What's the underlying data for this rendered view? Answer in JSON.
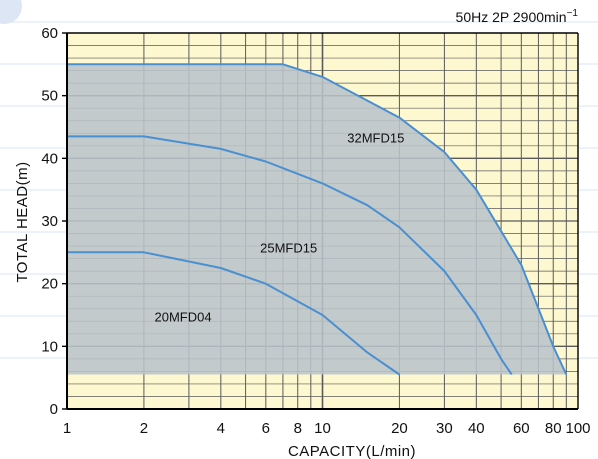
{
  "chart_data": {
    "type": "line",
    "condition": "50Hz 2P 2900min",
    "condition_sup": "−1",
    "xlabel": "CAPACITY(L/min)",
    "ylabel": "TOTAL HEAD(m)",
    "x_scale": "log",
    "xlim": [
      1,
      100
    ],
    "ylim": [
      0,
      60
    ],
    "x_ticks": [
      1,
      2,
      4,
      6,
      8,
      10,
      20,
      30,
      40,
      60,
      80,
      100
    ],
    "x_tick_labels": [
      "1",
      "2",
      "4",
      "6",
      "8",
      "10",
      "20",
      "30",
      "40",
      "60",
      "80",
      "100"
    ],
    "y_ticks": [
      0,
      10,
      20,
      30,
      40,
      50,
      60
    ],
    "y_tick_labels": [
      "0",
      "10",
      "20",
      "30",
      "40",
      "50",
      "60"
    ],
    "grid": true,
    "operating_range": {
      "color": "#b9c3cb",
      "points": [
        [
          1,
          5.5
        ],
        [
          1,
          55
        ],
        [
          7,
          55
        ],
        [
          10,
          53
        ],
        [
          20,
          46.5
        ],
        [
          30,
          41
        ],
        [
          40,
          35
        ],
        [
          60,
          23
        ],
        [
          80,
          10
        ],
        [
          90,
          5.5
        ]
      ]
    },
    "series": [
      {
        "name": "32MFD15",
        "color": "#4a8fd0",
        "x": [
          1,
          7,
          10,
          20,
          30,
          40,
          60,
          80,
          90
        ],
        "y": [
          55,
          55,
          53,
          46.5,
          41,
          35,
          23,
          10,
          5.5
        ],
        "label_at": [
          12.5,
          42.5
        ]
      },
      {
        "name": "25MFD15",
        "color": "#4a8fd0",
        "x": [
          1,
          2,
          4,
          6,
          10,
          15,
          20,
          30,
          40,
          50,
          55
        ],
        "y": [
          43.5,
          43.5,
          41.5,
          39.5,
          36,
          32.5,
          29,
          22,
          15,
          8,
          5.5
        ],
        "label_at": [
          5.7,
          25
        ]
      },
      {
        "name": "20MFD04",
        "color": "#4a8fd0",
        "x": [
          1,
          2,
          4,
          6,
          10,
          15,
          20
        ],
        "y": [
          25,
          25,
          22.5,
          20,
          15,
          9,
          5.5
        ],
        "label_at": [
          2.2,
          14
        ]
      }
    ],
    "colors": {
      "plot_background": "#fdf8d0",
      "grid": "#5a5a5a",
      "axis": "#000000"
    }
  }
}
